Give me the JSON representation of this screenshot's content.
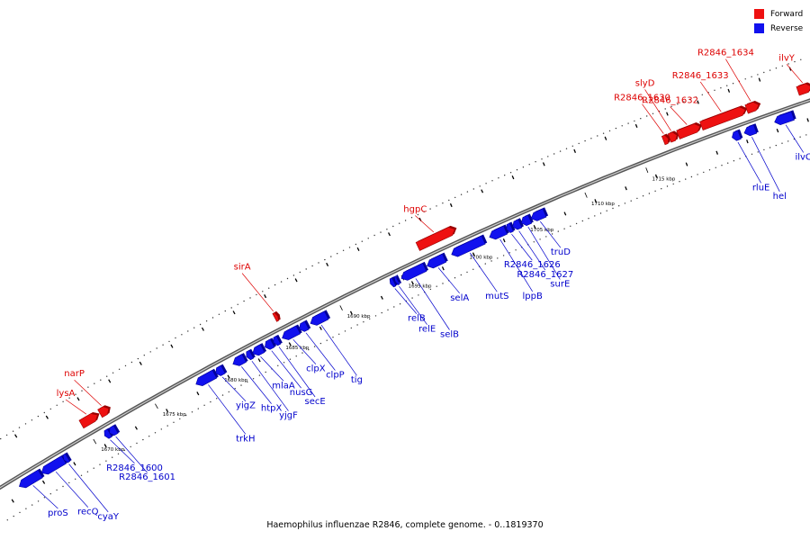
{
  "legend": [
    {
      "label": "Forward",
      "color": "#ee1111"
    },
    {
      "label": "Reverse",
      "color": "#1111ee"
    }
  ],
  "caption": "Haemophilus influenzae R2846, complete genome. - 0..1819370",
  "colors": {
    "forward": "#ee1111",
    "forward_dark": "#9a0000",
    "reverse": "#1111ee",
    "reverse_dark": "#00009a",
    "backbone": "#888888",
    "forward_label": "#dd0000",
    "reverse_label": "#0000cc"
  },
  "chart_data": {
    "type": "genome_map",
    "genome": "Haemophilus influenzae R2846",
    "range": [
      0,
      1819370
    ],
    "scale_unit": "kbp",
    "scale_ticks": [
      1670,
      1675,
      1680,
      1685,
      1690,
      1695,
      1700,
      1705,
      1710,
      1715
    ],
    "forward_genes": [
      {
        "label": "lysA",
        "pos": 1669.8,
        "len": 1.3
      },
      {
        "label": "narP",
        "pos": 1671.3,
        "len": 0.7
      },
      {
        "label": "sirA",
        "pos": 1685.4,
        "len": 0.25
      },
      {
        "label": "hgpC",
        "pos": 1697.0,
        "len": 3.0
      },
      {
        "label": "R2846_1630",
        "pos": 1717.0,
        "len": 0.4
      },
      {
        "label": "slyD",
        "pos": 1717.5,
        "len": 0.6
      },
      {
        "label": "R2846_1632",
        "pos": 1718.2,
        "len": 1.8
      },
      {
        "label": "R2846_1633",
        "pos": 1720.1,
        "len": 3.6
      },
      {
        "label": "R2846_1634",
        "pos": 1723.8,
        "len": 1.0
      },
      {
        "label": "ilvY",
        "pos": 1728.0,
        "len": 1.1
      }
    ],
    "reverse_genes": [
      {
        "label": "proS",
        "pos": 1663.9,
        "len": 1.7
      },
      {
        "label": "recQ",
        "pos": 1665.7,
        "len": 1.8
      },
      {
        "label": "cyaY",
        "pos": 1667.5,
        "len": 0.3
      },
      {
        "label": "R2846_1600",
        "pos": 1670.8,
        "len": 0.4
      },
      {
        "label": "R2846_1601",
        "pos": 1671.2,
        "len": 0.5
      },
      {
        "label": "trkH",
        "pos": 1678.2,
        "len": 1.5
      },
      {
        "label": "yigZ",
        "pos": 1679.8,
        "len": 0.6
      },
      {
        "label": "htpX",
        "pos": 1681.2,
        "len": 0.9
      },
      {
        "label": "yjgF",
        "pos": 1682.3,
        "len": 0.4
      },
      {
        "label": "mlaA",
        "pos": 1682.8,
        "len": 0.8
      },
      {
        "label": "nusG",
        "pos": 1683.8,
        "len": 0.6
      },
      {
        "label": "secE",
        "pos": 1684.5,
        "len": 0.4
      },
      {
        "label": "clpX",
        "pos": 1685.2,
        "len": 1.3
      },
      {
        "label": "clpP",
        "pos": 1686.6,
        "len": 0.6
      },
      {
        "label": "tig",
        "pos": 1687.5,
        "len": 1.3
      },
      {
        "label": "relB",
        "pos": 1694.0,
        "len": 0.3
      },
      {
        "label": "relE",
        "pos": 1694.4,
        "len": 0.2
      },
      {
        "label": "selB",
        "pos": 1694.9,
        "len": 1.9
      },
      {
        "label": "selA",
        "pos": 1697.0,
        "len": 1.4
      },
      {
        "label": "mutS",
        "pos": 1699.0,
        "len": 2.6
      },
      {
        "label": "lppB",
        "pos": 1702.1,
        "len": 1.3
      },
      {
        "label": "R2846_1626",
        "pos": 1703.5,
        "len": 0.4
      },
      {
        "label": "R2846_1627",
        "pos": 1704.0,
        "len": 0.6
      },
      {
        "label": "surE",
        "pos": 1704.7,
        "len": 0.7
      },
      {
        "label": "truD",
        "pos": 1705.5,
        "len": 1.1
      },
      {
        "label": "rluE",
        "pos": 1722.0,
        "len": 0.6
      },
      {
        "label": "hel",
        "pos": 1723.0,
        "len": 0.9
      },
      {
        "label": "ilvC",
        "pos": 1725.5,
        "len": 1.5
      }
    ]
  }
}
